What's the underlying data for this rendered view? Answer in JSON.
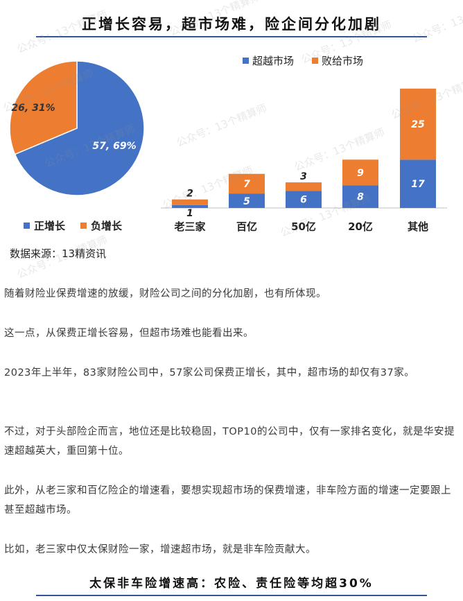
{
  "header_title": "正增长容易，超市场难，险企间分化加剧",
  "footer_title": "太保非车险增速高：农险、责任险等均超30%",
  "watermark_text": "公众号：13个精算师",
  "source_note": "数据来源：13精资讯",
  "colors": {
    "blue": "#4472c4",
    "orange": "#ed7d31",
    "navy": "#2f5597"
  },
  "chart_data": [
    {
      "type": "pie",
      "slices": [
        {
          "name": "正增长",
          "value": 57,
          "label": "57, 69%",
          "color": "#4472c4"
        },
        {
          "name": "负增长",
          "value": 26,
          "label": "26, 31%",
          "color": "#ed7d31"
        }
      ],
      "legend_position": "bottom"
    },
    {
      "type": "bar",
      "stacked": true,
      "categories": [
        "老三家",
        "百亿",
        "50亿",
        "20亿",
        "其他"
      ],
      "series": [
        {
          "name": "超越市场",
          "values": [
            1,
            5,
            6,
            8,
            17
          ],
          "color": "#4472c4"
        },
        {
          "name": "败给市场",
          "values": [
            2,
            7,
            3,
            9,
            25
          ],
          "color": "#ed7d31"
        }
      ],
      "ylim": [
        0,
        42
      ],
      "legend_position": "top"
    }
  ],
  "paragraphs": [
    "随着财险业保费增速的放缓，财险公司之间的分化加剧，也有所体现。",
    "这一点，从保费正增长容易，但超市场难也能看出来。",
    "2023年上半年，83家财险公司中，57家公司保费正增长，其中，超市场的却仅有37家。",
    "不过，对于头部险企而言，地位还是比较稳固，TOP10的公司中，仅有一家排名变化，就是华安提速超越英大，重回第十位。",
    "此外，从老三家和百亿险企的增速看，要想实现超市场的保费增速，非车险方面的增速一定要跟上甚至超越市场。",
    "比如，老三家中仅太保财险一家，增速超市场，就是非车险贡献大。"
  ]
}
